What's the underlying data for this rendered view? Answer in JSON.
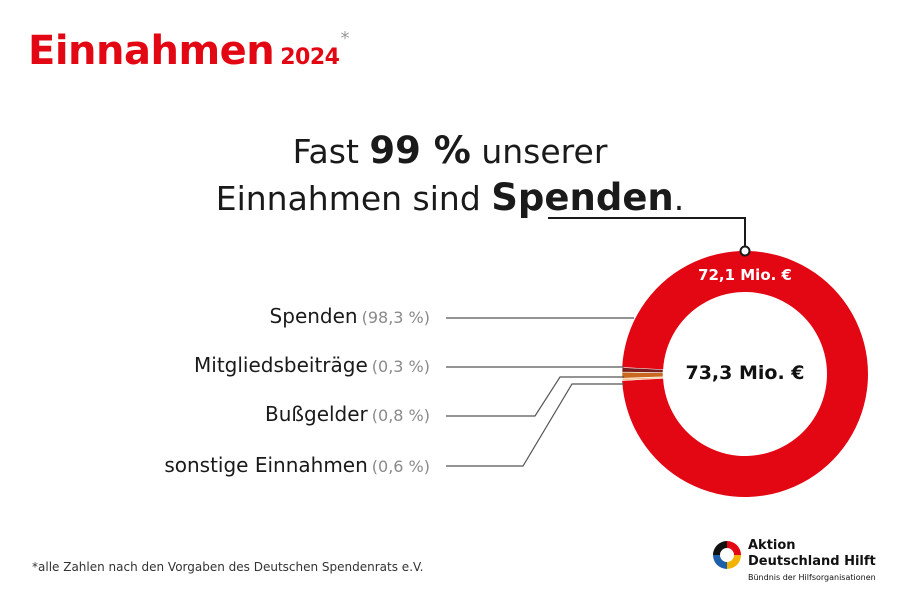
{
  "title": {
    "main": "Einnahmen",
    "year": "2024",
    "asterisk": "*"
  },
  "headline": {
    "pre1": "Fast ",
    "bold1": "99 %",
    "post1": " unserer",
    "pre2": "Einnahmen sind ",
    "bold2": "Spenden",
    "post2": "."
  },
  "chart_data": {
    "type": "pie",
    "variant": "donut",
    "center_label": "73,3 Mio. €",
    "slice_labels": [
      {
        "slice": "Spenden",
        "text": "72,1 Mio. €"
      }
    ],
    "categories": [
      "Spenden",
      "Mitgliedsbeiträge",
      "Bußgelder",
      "sonstige Einnahmen"
    ],
    "percent_labels": [
      "(98,3 %)",
      "(0,3 %)",
      "(0,8 %)",
      "(0,6 %)"
    ],
    "values": [
      98.3,
      0.3,
      0.8,
      0.6
    ],
    "colors": [
      "#e30613",
      "#f6c28b",
      "#c8691f",
      "#7a1f1f"
    ]
  },
  "footnote": "*alle Zahlen nach den Vorgaben des Deutschen Spendenrats e.V.",
  "logo": {
    "line1": "Aktion",
    "line2": "Deutschland Hilft",
    "line3": "Bündnis der Hilfsorganisationen"
  }
}
